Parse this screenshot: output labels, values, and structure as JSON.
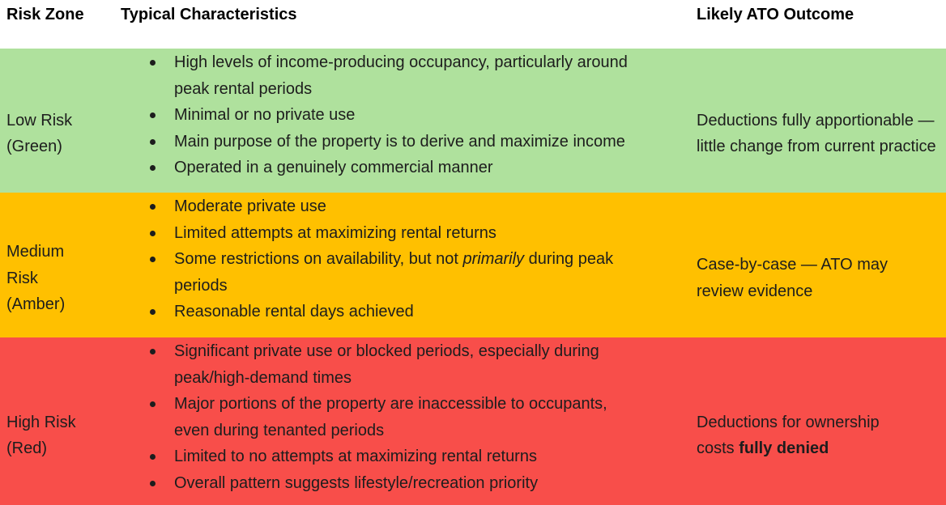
{
  "colors": {
    "header_bg": "#FFFFFF",
    "header_text": "#000000",
    "body_text": "#1D1D1D",
    "green_row": "#AFE19D",
    "amber_row": "#FFC000",
    "red_row": "#F84E4A"
  },
  "table": {
    "headers": [
      "Risk Zone",
      "Typical Characteristics",
      "Likely ATO Outcome"
    ],
    "rows": [
      {
        "zone": "Low Risk\n(Green)",
        "color": "#AFE19D",
        "bullets": [
          "High levels of income-producing occupancy, particularly around peak rental periods",
          "Minimal or no private use",
          "Main purpose of the property is to derive and maximize income",
          "Operated in a genuinely commercial manner"
        ],
        "outcome": "Deductions fully apportionable — little change from current practice"
      },
      {
        "zone": "Medium\nRisk\n(Amber)",
        "color": "#FFC000",
        "bullets": [
          "Moderate private use",
          "Limited attempts at maximizing rental returns",
          {
            "pre": "Some restrictions on availability, but not ",
            "italic": "primarily",
            "post": " during peak periods"
          },
          "Reasonable rental days achieved"
        ],
        "outcome": "Case-by-case — ATO may review evidence"
      },
      {
        "zone": "High Risk\n(Red)",
        "color": "#F84E4A",
        "bullets": [
          "Significant private use or blocked periods, especially during peak/high-demand times",
          "Major portions of the property are inaccessible to occupants, even during tenanted periods",
          "Limited to no attempts at maximizing rental returns",
          "Overall pattern suggests lifestyle/recreation priority"
        ],
        "outcome": {
          "pre": "Deductions for ownership\ncosts ",
          "bold": "fully denied"
        }
      }
    ]
  }
}
